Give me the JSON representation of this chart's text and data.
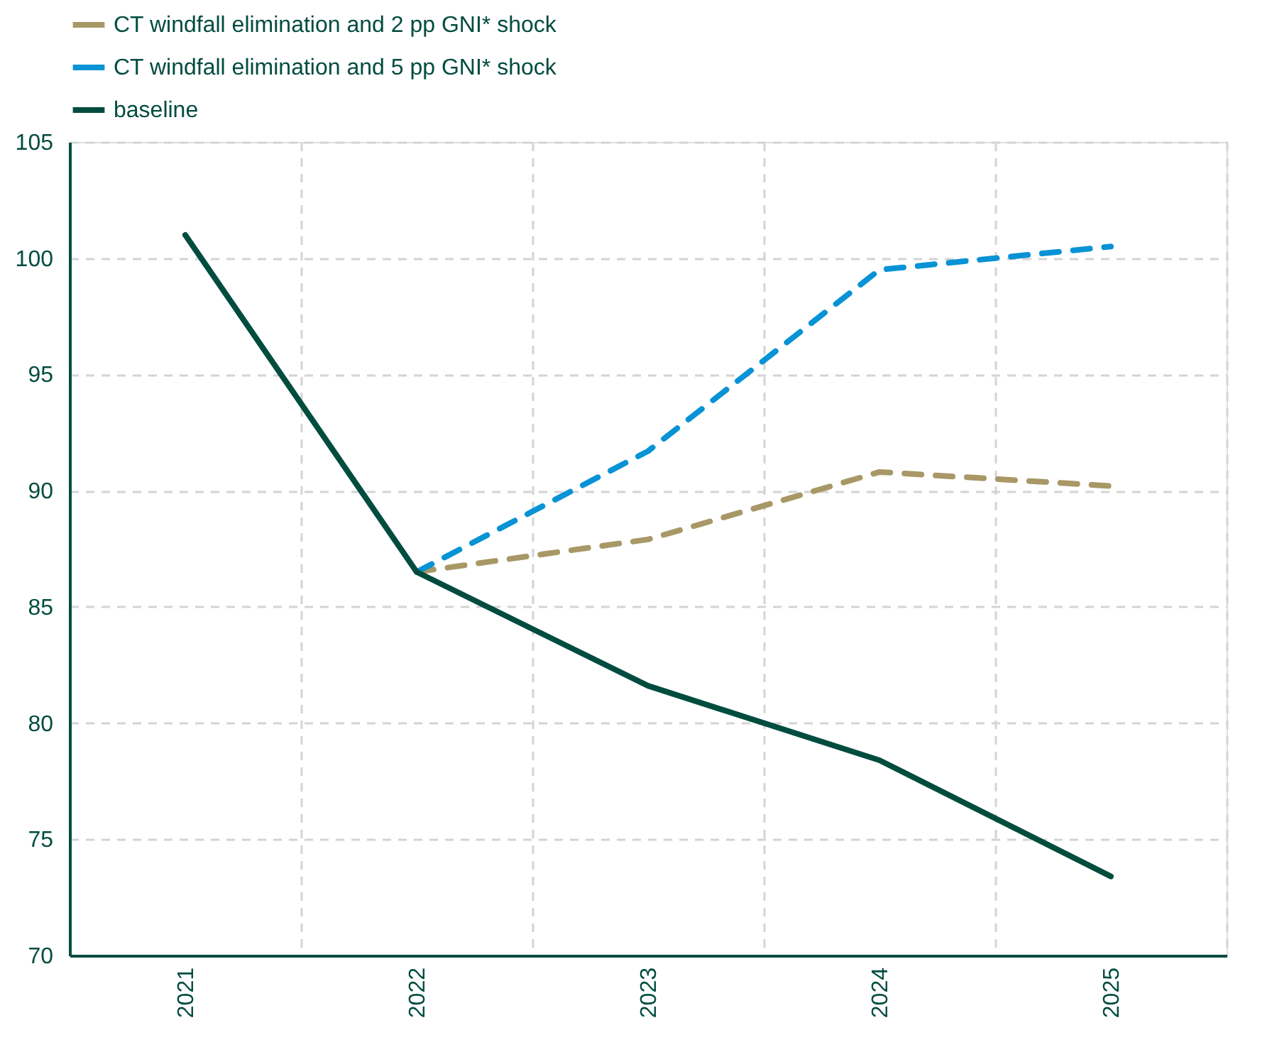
{
  "chart_data": {
    "type": "line",
    "categories": [
      "2021",
      "2022",
      "2023",
      "2024",
      "2025"
    ],
    "series": [
      {
        "name": "CT windfall elimination and 2 pp GNI* shock",
        "color": "#a89866",
        "line_style": "dashed",
        "values": [
          null,
          86.5,
          87.9,
          90.8,
          90.2
        ]
      },
      {
        "name": "CT windfall elimination and 5 pp GNI* shock",
        "color": "#0793d5",
        "line_style": "dashed",
        "values": [
          null,
          86.5,
          91.7,
          99.5,
          100.5
        ]
      },
      {
        "name": "baseline",
        "color": "#004c3f",
        "line_style": "solid",
        "values": [
          101.0,
          86.5,
          81.6,
          78.4,
          73.4
        ]
      }
    ],
    "ylim": [
      70,
      105
    ],
    "yticks": [
      70,
      75,
      80,
      85,
      90,
      95,
      100,
      105
    ],
    "grid": true,
    "legend": "top"
  }
}
